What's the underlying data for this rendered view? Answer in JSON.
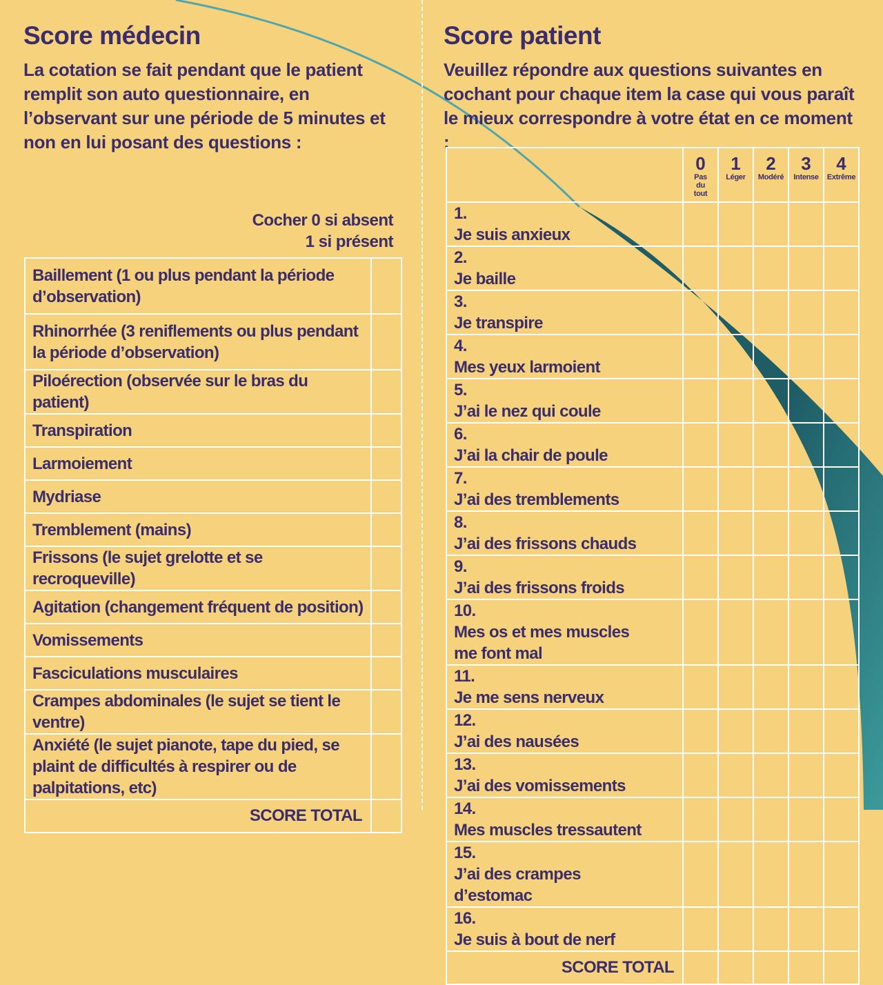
{
  "colors": {
    "background": "#f6d27c",
    "text": "#3b2d6b",
    "accent": "#2b7f84",
    "grid": "#ffffff"
  },
  "left": {
    "title": "Score médecin",
    "intro": "La cotation se fait pendant que le patient remplit son auto questionnaire, en l’observant sur une période de 5 minutes et non en lui posant des questions :",
    "instruction_line1": "Cocher 0 si absent",
    "instruction_line2": "1 si présent",
    "items": [
      "Baillement (1 ou plus pendant la période d’observation)",
      "Rhinorrhée (3 reniflements ou plus pendant la période d’observation)",
      "Piloérection (observée sur le bras du patient)",
      "Transpiration",
      "Larmoiement",
      "Mydriase",
      "Tremblement (mains)",
      "Frissons (le sujet grelotte et se recroqueville)",
      "Agitation (changement fréquent de position)",
      "Vomissements",
      "Fasciculations musculaires",
      "Crampes abdominales (le sujet se tient le ventre)",
      "Anxiété (le sujet pianote, tape du pied, se plaint de difficultés à respirer ou de palpitations, etc)"
    ],
    "total_label": "SCORE TOTAL"
  },
  "right": {
    "title": "Score patient",
    "intro": "Veuillez répondre aux questions suivantes en cochant pour chaque item la case qui vous paraît le mieux correspondre à votre état en ce moment :",
    "scale": [
      {
        "value": "0",
        "label": "Pas du tout"
      },
      {
        "value": "1",
        "label": "Léger"
      },
      {
        "value": "2",
        "label": "Modéré"
      },
      {
        "value": "3",
        "label": "Intense"
      },
      {
        "value": "4",
        "label": "Extrême"
      }
    ],
    "items": [
      {
        "num": "1.",
        "text": "Je suis anxieux"
      },
      {
        "num": "2.",
        "text": "Je baille"
      },
      {
        "num": "3.",
        "text": "Je transpire"
      },
      {
        "num": "4.",
        "text": "Mes yeux larmoient"
      },
      {
        "num": "5.",
        "text": "J’ai le nez qui coule"
      },
      {
        "num": "6.",
        "text": "J’ai la chair de poule"
      },
      {
        "num": "7.",
        "text": "J’ai des tremblements"
      },
      {
        "num": "8.",
        "text": "J’ai des frissons chauds"
      },
      {
        "num": "9.",
        "text": "J’ai des frissons froids"
      },
      {
        "num": "10.",
        "text": "Mes os et mes muscles me font mal"
      },
      {
        "num": "11.",
        "text": "Je me sens nerveux"
      },
      {
        "num": "12.",
        "text": "J’ai des nausées"
      },
      {
        "num": "13.",
        "text": "J’ai des vomissements"
      },
      {
        "num": "14.",
        "text": "Mes muscles tressautent"
      },
      {
        "num": "15.",
        "text": "J’ai des crampes d’estomac"
      },
      {
        "num": "16.",
        "text": "Je suis à bout de nerf"
      }
    ],
    "total_label": "SCORE TOTAL"
  }
}
